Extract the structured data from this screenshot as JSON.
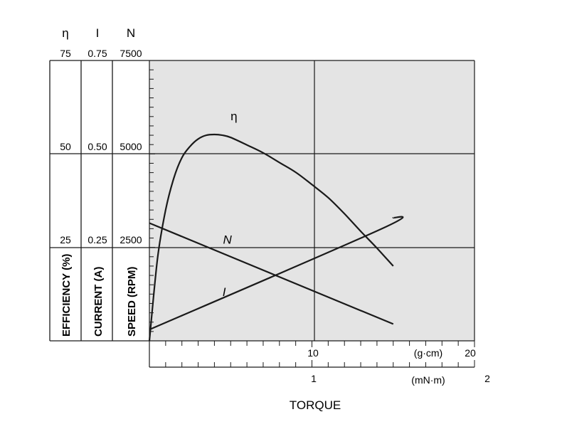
{
  "chart_data": {
    "type": "line",
    "x_axis": {
      "label": "TORQUE",
      "scale": "linear",
      "range_gcm": [
        0,
        20
      ],
      "range_mNm": [
        0,
        2
      ],
      "unit_gcm": "(g·cm)",
      "unit_mNm": "(mN·m)",
      "ticks_gcm": [
        {
          "value": 10,
          "label": "10"
        },
        {
          "value": 20,
          "label": "20"
        }
      ],
      "ticks_mNm": [
        {
          "value": 1,
          "label": "1"
        },
        {
          "value": 2,
          "label": "2"
        }
      ]
    },
    "y_axes": [
      {
        "symbol": "η",
        "label": "EFFICIENCY (%)",
        "range": [
          0,
          75
        ],
        "ticks": [
          "25",
          "50",
          "75"
        ]
      },
      {
        "symbol": "I",
        "label": "CURRENT (A)",
        "range": [
          0,
          0.75
        ],
        "ticks": [
          "0.25",
          "0.50",
          "0.75"
        ]
      },
      {
        "symbol": "N",
        "label": "SPEED (RPM)",
        "range": [
          0,
          7500
        ],
        "ticks": [
          "2500",
          "5000",
          "7500"
        ]
      }
    ],
    "grid": true,
    "series": [
      {
        "name": "η",
        "axis": "EFFICIENCY (%)",
        "x": [
          0,
          0.5,
          1,
          1.5,
          2,
          2.5,
          3,
          3.5,
          4,
          4.5,
          5,
          6,
          7,
          8,
          9,
          10,
          11,
          12,
          13,
          14,
          15
        ],
        "values": [
          0,
          22,
          35,
          43.5,
          49,
          52,
          54,
          55,
          55.2,
          55,
          54.4,
          52.4,
          50.3,
          47.7,
          45.1,
          41.8,
          38.3,
          34,
          29.3,
          24.8,
          20
        ]
      },
      {
        "name": "N",
        "axis": "SPEED (RPM)",
        "x": [
          0,
          15
        ],
        "values": [
          3150,
          450
        ]
      },
      {
        "name": "I",
        "axis": "CURRENT (A)",
        "x": [
          0,
          14.3,
          15
        ],
        "values": [
          0.03,
          0.3,
          0.33
        ]
      }
    ],
    "curve_labels": [
      {
        "text": "η",
        "x": 5.2,
        "y_eff": 59
      },
      {
        "text": "N",
        "x": 4.8,
        "y_rpm": 2600
      },
      {
        "text": "I",
        "x": 4.6,
        "y_cur": 0.12
      }
    ]
  }
}
